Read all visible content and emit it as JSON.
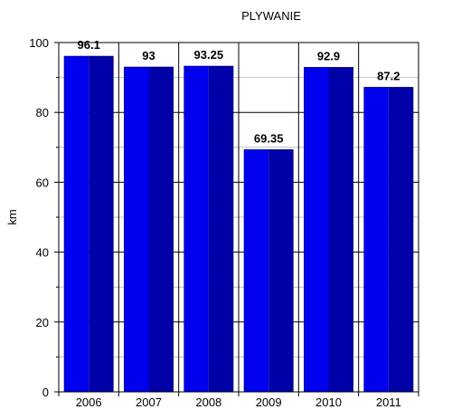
{
  "chart_data": {
    "type": "bar",
    "title": "PLYWANIE",
    "xlabel": "",
    "ylabel": "km",
    "categories": [
      "2006",
      "2007",
      "2008",
      "2009",
      "2010",
      "2011"
    ],
    "values": [
      96.1,
      93,
      93.25,
      69.35,
      92.9,
      87.2
    ],
    "value_labels": [
      "96.1",
      "93",
      "93.25",
      "69.35",
      "92.9",
      "87.2"
    ],
    "ylim": [
      0,
      100
    ],
    "yticks": [
      0,
      20,
      40,
      60,
      80,
      100
    ],
    "ytick_labels": [
      "0",
      "20",
      "40",
      "60",
      "80",
      "100"
    ],
    "grid": true,
    "colors": {
      "bar_left": "#0000ee",
      "bar_right": "#0000a8",
      "grid_minor": "#c0c0c0",
      "grid_major": "#000000"
    }
  }
}
